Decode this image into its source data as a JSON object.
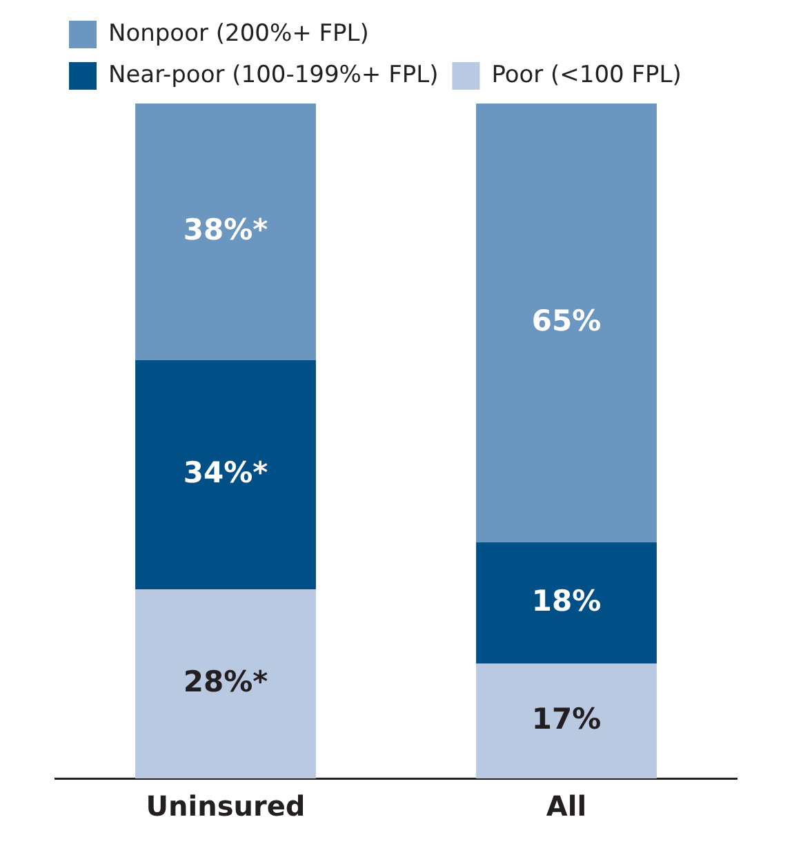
{
  "chart_data": {
    "type": "bar",
    "stacked": true,
    "legend": "top",
    "grid": false,
    "tick_labels": "x",
    "categories": [
      "Uninsured",
      "All"
    ],
    "series": [
      {
        "name": "Poor (<100 FPL)",
        "color": "#b9c9e2",
        "values": [
          28,
          17
        ],
        "value_labels": [
          "28%*",
          "17%"
        ]
      },
      {
        "name": "Near-poor (100-199%+ FPL)",
        "color": "#004f86",
        "values": [
          34,
          18
        ],
        "value_labels": [
          "34%*",
          "18%"
        ]
      },
      {
        "name": "Nonpoor (200%+ FPL)",
        "color": "#6a96c0",
        "values": [
          38,
          65
        ],
        "value_labels": [
          "38%*",
          "65%"
        ]
      }
    ]
  }
}
